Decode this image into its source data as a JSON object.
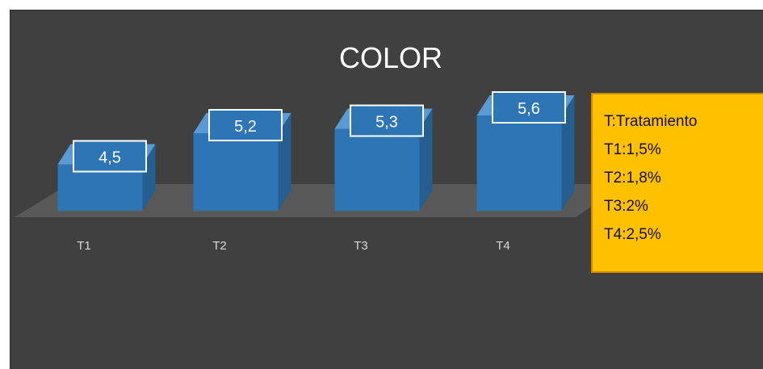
{
  "colors": {
    "background": "#404040",
    "floor": "#595959",
    "bar_front": "#2e75b6",
    "bar_top": "#5b9bd5",
    "bar_side": "#255e91",
    "label_text": "#ffffff",
    "axis_text": "#d9d9d9",
    "legend_fill": "#ffc000",
    "legend_border": "#d28a00",
    "legend_text": "#111111"
  },
  "chart_data": {
    "type": "bar",
    "title": "COLOR",
    "categories": [
      "T1",
      "T2",
      "T3",
      "T4"
    ],
    "values": [
      4.5,
      5.2,
      5.3,
      5.6
    ],
    "value_labels": [
      "4,5",
      "5,2",
      "5,3",
      "5,6"
    ],
    "xlabel": "",
    "ylabel": "",
    "grid": false,
    "style": "3d-column"
  },
  "legend_box": {
    "lines": [
      "T:Tratamiento",
      "T1:1,5%",
      "T2:1,8%",
      "T3:2%",
      "T4:2,5%"
    ]
  }
}
